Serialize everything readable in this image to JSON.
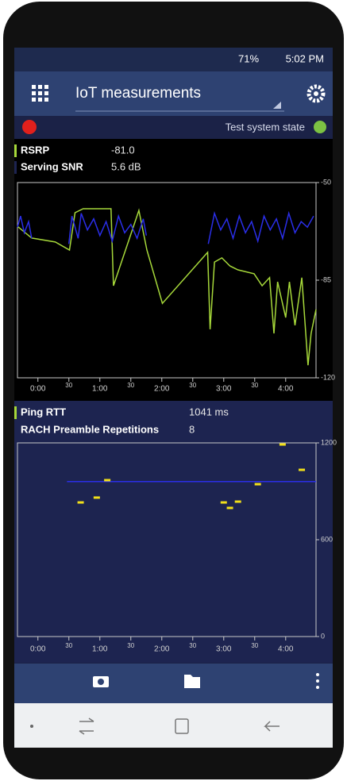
{
  "status_bar": {
    "battery": "71%",
    "time": "5:02 PM"
  },
  "app_bar": {
    "title": "IoT measurements"
  },
  "status_row": {
    "label": "Test system state"
  },
  "chart_data": [
    {
      "type": "line",
      "xlim": [
        -0.33,
        4.49
      ],
      "ylim": [
        -120,
        -50
      ],
      "xticks": [
        {
          "value": 0,
          "label": "0:00"
        },
        {
          "value": 0.5,
          "label": "30"
        },
        {
          "value": 1,
          "label": "1:00"
        },
        {
          "value": 1.5,
          "label": "30"
        },
        {
          "value": 2,
          "label": "2:00"
        },
        {
          "value": 2.5,
          "label": "30"
        },
        {
          "value": 3,
          "label": "3:00"
        },
        {
          "value": 3.5,
          "label": "30"
        },
        {
          "value": 4,
          "label": "4:00"
        }
      ],
      "yticks": [
        -50,
        -85,
        -120
      ],
      "series": [
        {
          "name": "RSRP",
          "readout": "-81.0",
          "color": "#a6d83a",
          "type": "line",
          "x": [
            -0.33,
            -0.1,
            0.28,
            0.51,
            0.6,
            0.73,
            1.18,
            1.22,
            1.63,
            1.76,
            2.01,
            2.74,
            2.78,
            2.85,
            2.97,
            3.1,
            3.23,
            3.49,
            3.62,
            3.74,
            3.81,
            3.87,
            4.0,
            4.06,
            4.15,
            4.26,
            4.36,
            4.41,
            4.49
          ],
          "values": [
            -65.7,
            -69.9,
            -71.3,
            -74.2,
            -60.8,
            -59.4,
            -59.4,
            -87.0,
            -60.0,
            -74.2,
            -93.3,
            -75.0,
            -102.6,
            -78.5,
            -77.0,
            -79.9,
            -81.3,
            -82.7,
            -87.0,
            -84.1,
            -104.1,
            -85.6,
            -98.4,
            -85.6,
            -101.2,
            -84.1,
            -115.5,
            -104.1,
            -95.5
          ]
        },
        {
          "name": "Serving SNR",
          "readout": "5.6 dB",
          "color": "#2a2ee8",
          "type": "line",
          "x": [
            -0.33,
            -0.28,
            -0.22,
            -0.15,
            -0.1,
            1.0,
            0.5,
            0.55,
            0.6,
            0.65,
            0.7,
            0.8,
            0.9,
            1.0,
            1.1,
            1.2,
            1.3,
            1.4,
            1.5,
            1.6,
            1.7,
            1.75,
            2.2,
            2.75,
            2.85,
            2.95,
            3.05,
            3.15,
            3.25,
            3.35,
            3.45,
            3.55,
            3.65,
            3.75,
            3.85,
            3.95,
            4.05,
            4.15,
            4.25,
            4.35,
            4.45
          ],
          "values": [
            -66,
            -62,
            -68,
            -64,
            -70,
            null,
            -72,
            -62,
            -66,
            -70,
            -61,
            -67,
            -63,
            -69,
            -64,
            -71,
            -62,
            -68,
            -65,
            -70,
            -63,
            -69,
            null,
            -72,
            -61,
            -67,
            -63,
            -70,
            -62,
            -68,
            -64,
            -71,
            -62,
            -67,
            -63,
            -70,
            -61,
            -68,
            -64,
            -66,
            -62
          ]
        }
      ]
    },
    {
      "type": "line",
      "xlim": [
        -0.33,
        4.49
      ],
      "ylim": [
        0,
        1200
      ],
      "xticks": [
        {
          "value": 0,
          "label": "0:00"
        },
        {
          "value": 0.5,
          "label": "30"
        },
        {
          "value": 1,
          "label": "1:00"
        },
        {
          "value": 1.5,
          "label": "30"
        },
        {
          "value": 2,
          "label": "2:00"
        },
        {
          "value": 2.5,
          "label": "30"
        },
        {
          "value": 3,
          "label": "3:00"
        },
        {
          "value": 3.5,
          "label": "30"
        },
        {
          "value": 4,
          "label": "4:00"
        }
      ],
      "yticks": [
        1200,
        600,
        0
      ],
      "series": [
        {
          "name": "Ping RTT",
          "readout": "1041 ms",
          "color": "#2a2ee8",
          "type": "line",
          "x": [
            0.47,
            4.49
          ],
          "values": [
            960,
            960
          ]
        },
        {
          "name": "RACH Preamble Repetitions",
          "readout": "8",
          "color": "#f2e01a",
          "type": "scatter",
          "x": [
            0.69,
            0.95,
            1.12,
            3.0,
            3.1,
            3.23,
            3.55,
            3.95,
            4.26
          ],
          "values": [
            831,
            861,
            969,
            831,
            797,
            836,
            944,
            1190,
            1033
          ]
        }
      ]
    }
  ]
}
